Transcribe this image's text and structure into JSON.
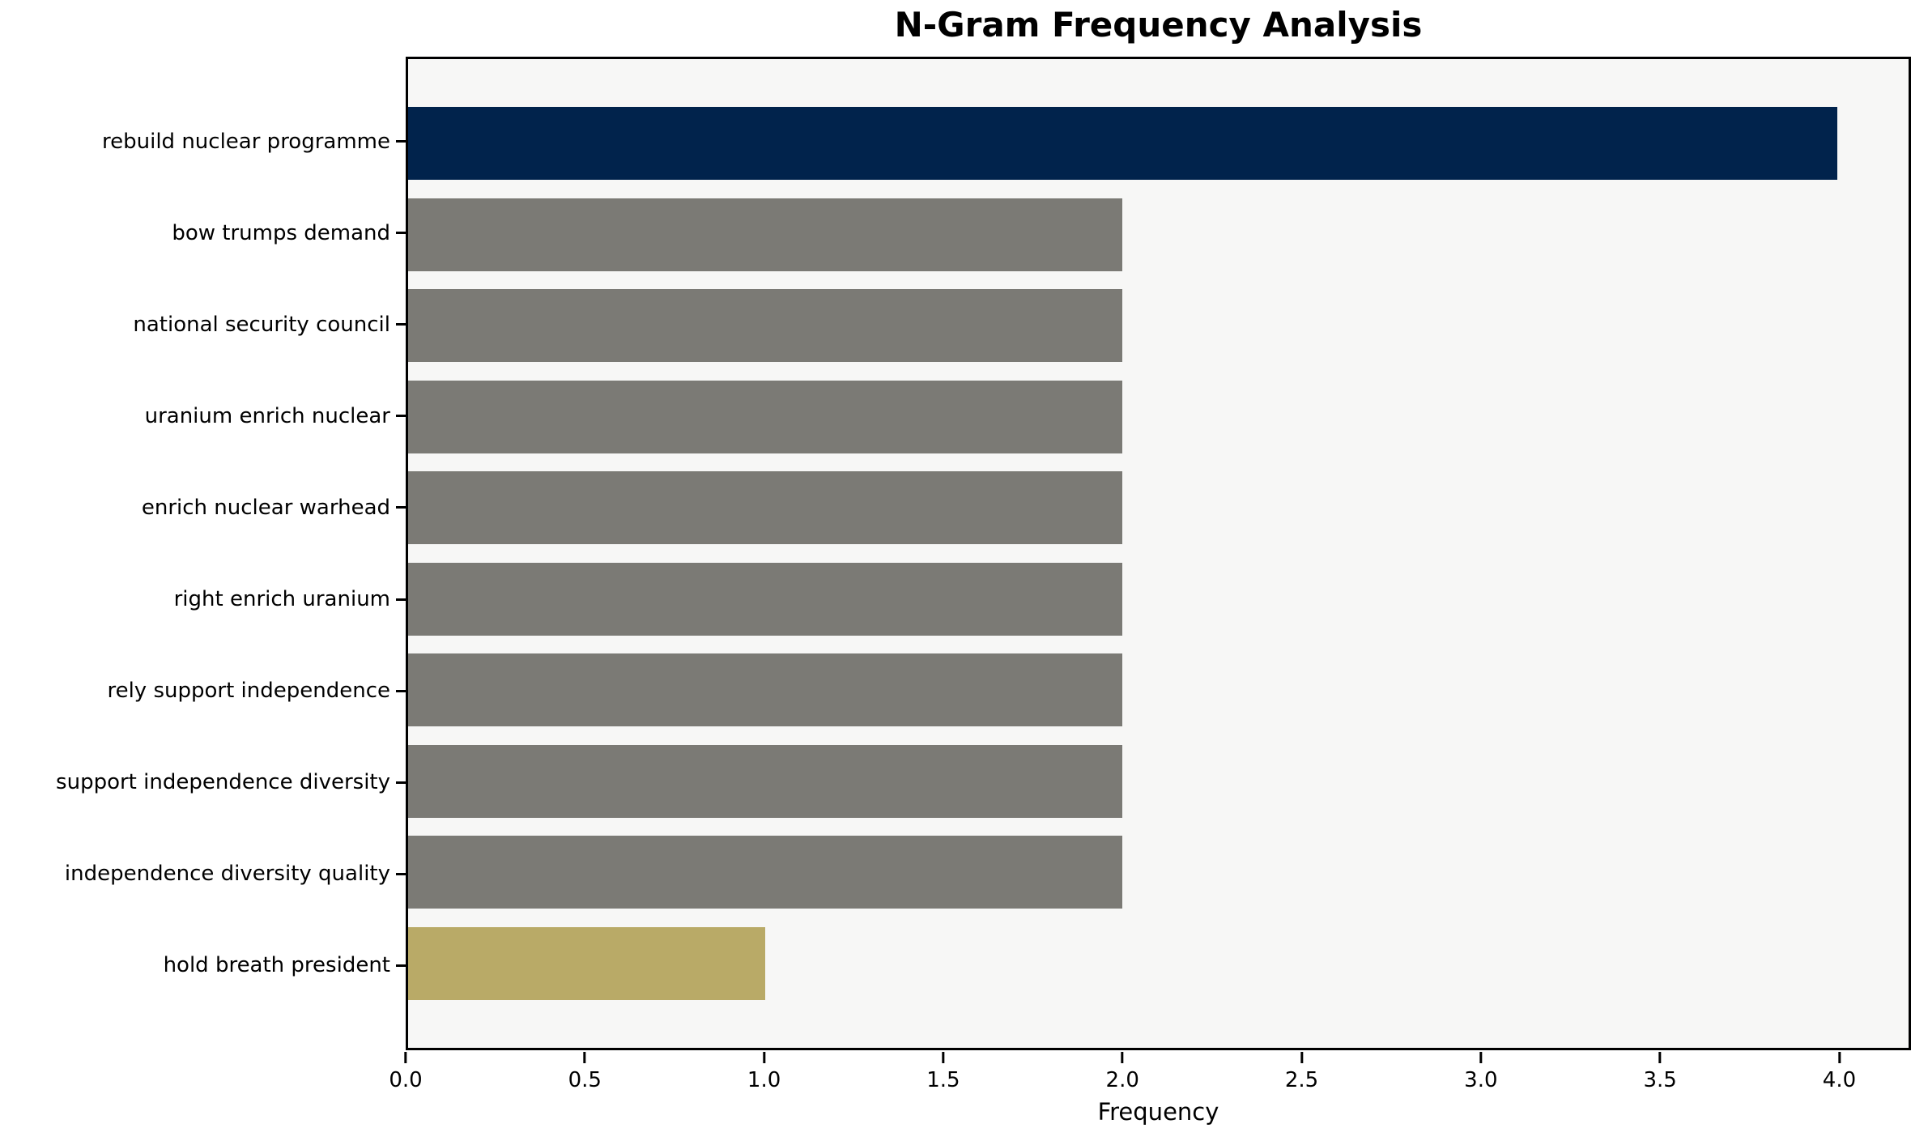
{
  "chart_data": {
    "type": "bar",
    "orientation": "horizontal",
    "title": "N-Gram Frequency Analysis",
    "xlabel": "Frequency",
    "ylabel": "",
    "categories": [
      "rebuild nuclear programme",
      "bow trumps demand",
      "national security council",
      "uranium enrich nuclear",
      "enrich nuclear warhead",
      "right enrich uranium",
      "rely support independence",
      "support independence diversity",
      "independence diversity quality",
      "hold breath president"
    ],
    "values": [
      4,
      2,
      2,
      2,
      2,
      2,
      2,
      2,
      2,
      1
    ],
    "bar_colors": [
      "#01234c",
      "#7b7a75",
      "#7b7a75",
      "#7b7a75",
      "#7b7a75",
      "#7b7a75",
      "#7b7a75",
      "#7b7a75",
      "#7b7a75",
      "#b9aa67"
    ],
    "x_ticks": [
      "0.0",
      "0.5",
      "1.0",
      "1.5",
      "2.0",
      "2.5",
      "3.0",
      "3.5",
      "4.0"
    ],
    "xlim": [
      0,
      4.2
    ],
    "grid": false,
    "legend": null,
    "plot_background": "#f7f7f6",
    "page_background": "#ffffff",
    "spine_color": "#000000"
  }
}
